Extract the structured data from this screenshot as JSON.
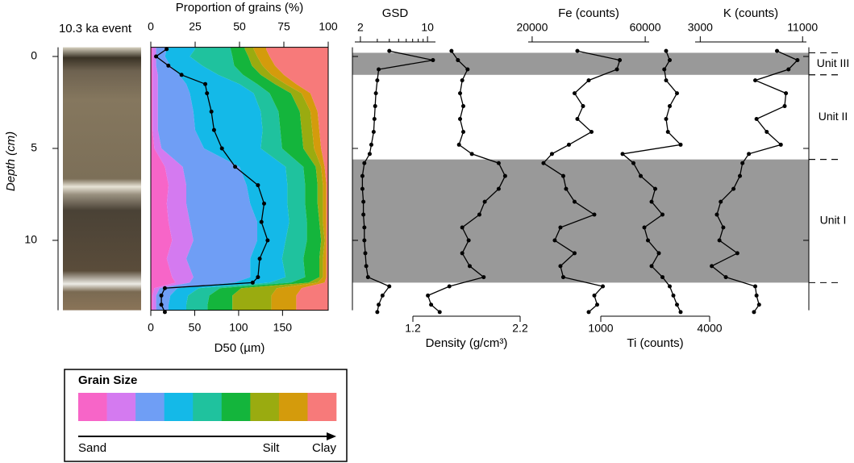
{
  "core_title": "10.3 ka event",
  "depth_axis": {
    "label": "Depth (cm)",
    "lim": [
      -0.5,
      13.8
    ],
    "ticks": [
      0,
      5,
      10
    ]
  },
  "units": [
    {
      "name": "Unit III",
      "top": -0.2,
      "bottom": 1.0,
      "shaded": true
    },
    {
      "name": "Unit II",
      "top": 1.0,
      "bottom": 5.6,
      "shaded": false
    },
    {
      "name": "Unit I",
      "top": 5.6,
      "bottom": 12.3,
      "shaded": true
    }
  ],
  "legend": {
    "title": "Grain Size",
    "labels": [
      "Sand",
      "Silt",
      "Clay"
    ]
  },
  "chart_data": [
    {
      "type": "stacked_area",
      "title": "Proportion of grains (%)",
      "xaxis": "top",
      "xlim": [
        0,
        100
      ],
      "xticks": [
        0,
        25,
        50,
        75,
        100
      ],
      "depth": [
        -0.4,
        0,
        0.5,
        1,
        1.5,
        2,
        3,
        4,
        5,
        6,
        7,
        8,
        9,
        10,
        11,
        12,
        12.3,
        12.6,
        13,
        13.5,
        13.9
      ],
      "series": [
        {
          "color": "#f765c8",
          "values": [
            1,
            1,
            1,
            1,
            1,
            1,
            1,
            1,
            2,
            8,
            10,
            9,
            10,
            12,
            9,
            12,
            14,
            2,
            1,
            1,
            1
          ]
        },
        {
          "color": "#d47af0",
          "values": [
            2,
            2,
            2,
            3,
            3,
            3,
            3,
            3,
            4,
            10,
            10,
            11,
            12,
            12,
            11,
            12,
            8,
            3,
            2,
            2,
            2
          ]
        },
        {
          "color": "#6f9ef5",
          "values": [
            6,
            5,
            8,
            12,
            16,
            18,
            20,
            21,
            24,
            32,
            34,
            36,
            38,
            36,
            36,
            32,
            25,
            10,
            8,
            7,
            7
          ]
        },
        {
          "color": "#14b9e8",
          "values": [
            16,
            14,
            18,
            22,
            30,
            36,
            38,
            38,
            32,
            26,
            23,
            21,
            18,
            16,
            18,
            20,
            20,
            12,
            10,
            10,
            10
          ]
        },
        {
          "color": "#1fc29e",
          "values": [
            20,
            24,
            18,
            14,
            10,
            9,
            10,
            10,
            12,
            10,
            10,
            10,
            10,
            12,
            12,
            11,
            12,
            12,
            12,
            12,
            12
          ]
        },
        {
          "color": "#14b53c",
          "values": [
            8,
            9,
            10,
            10,
            10,
            12,
            12,
            12,
            12,
            7,
            7,
            7,
            7,
            8,
            9,
            8,
            10,
            12,
            13,
            14,
            14
          ]
        },
        {
          "color": "#9aab10",
          "values": [
            5,
            5,
            6,
            6,
            6,
            6,
            6,
            6,
            6,
            3,
            3,
            3,
            2,
            2,
            2,
            2,
            5,
            20,
            22,
            22,
            22
          ]
        },
        {
          "color": "#d49b0c",
          "values": [
            7,
            7,
            7,
            7,
            6,
            5,
            4,
            4,
            4,
            2,
            2,
            2,
            2,
            1,
            2,
            2,
            4,
            14,
            14,
            14,
            14
          ]
        },
        {
          "color": "#f77a7a",
          "values": [
            35,
            33,
            30,
            25,
            18,
            10,
            6,
            5,
            4,
            2,
            1,
            1,
            1,
            1,
            1,
            1,
            2,
            15,
            18,
            18,
            18
          ]
        }
      ]
    },
    {
      "type": "line",
      "xlabel": "D50 (µm)",
      "xaxis": "bottom",
      "color": "#000000",
      "xlim": [
        0,
        202
      ],
      "xticks": [
        0,
        50,
        100,
        150
      ],
      "depth": [
        -0.4,
        0,
        0.5,
        1,
        1.5,
        2,
        3,
        4,
        5,
        6,
        7,
        8,
        9,
        10,
        11,
        12,
        12.3,
        12.6,
        13,
        13.5,
        13.9
      ],
      "values": [
        18,
        6,
        20,
        35,
        62,
        64,
        69,
        72,
        81,
        96,
        122,
        129,
        126,
        133,
        124,
        122,
        116,
        16,
        12,
        12,
        16
      ]
    },
    {
      "type": "line",
      "xlabel": "GSD",
      "xaxis": "top",
      "log": true,
      "color": "#000000",
      "xlim": [
        1.75,
        12.1
      ],
      "xticks": [
        2,
        10
      ],
      "xminor": [
        3,
        4,
        5,
        6,
        7,
        8,
        9
      ],
      "depth": [
        -0.3,
        0.2,
        0.7,
        1.3,
        2,
        2.7,
        3.4,
        4.1,
        4.8,
        5.3,
        5.8,
        6.5,
        7.2,
        7.9,
        8.6,
        9.3,
        10,
        10.7,
        11.4,
        12,
        12.5,
        13,
        13.5,
        13.9
      ],
      "values": [
        4.0,
        11.4,
        3.1,
        3.0,
        2.9,
        2.85,
        2.8,
        2.75,
        2.6,
        2.5,
        2.2,
        2.1,
        2.1,
        2.15,
        2.15,
        2.2,
        2.2,
        2.25,
        2.3,
        2.4,
        4.0,
        3.4,
        3.1,
        3.0
      ]
    },
    {
      "type": "line",
      "xlabel": "Density (g/cm³)",
      "xaxis": "bottom",
      "color": "#000000",
      "xlim": [
        1.2,
        2.2
      ],
      "xticks": [
        1.2,
        2.2
      ],
      "depth": [
        -0.3,
        0.2,
        0.7,
        1.3,
        2,
        2.7,
        3.4,
        4.1,
        4.8,
        5.3,
        5.8,
        6.5,
        7.2,
        7.9,
        8.6,
        9.3,
        10,
        10.7,
        11.4,
        12,
        12.5,
        13,
        13.5,
        13.9
      ],
      "values": [
        1.56,
        1.62,
        1.71,
        1.66,
        1.64,
        1.67,
        1.64,
        1.67,
        1.63,
        1.75,
        2.0,
        2.06,
        2.0,
        1.87,
        1.82,
        1.66,
        1.72,
        1.66,
        1.73,
        1.86,
        1.54,
        1.34,
        1.37,
        1.45
      ]
    },
    {
      "type": "line",
      "xlabel": "Fe (counts)",
      "xaxis": "top",
      "color": "#000000",
      "xlim": [
        18600,
        61400
      ],
      "xticks": [
        20000,
        60000
      ],
      "depth": [
        -0.3,
        0.2,
        0.7,
        1.3,
        2,
        2.7,
        3.4,
        4.1,
        4.8,
        5.3,
        5.8,
        6.5,
        7.2,
        7.9,
        8.6,
        9.3,
        10,
        10.7,
        11.4,
        12,
        12.5,
        13,
        13.5,
        13.9
      ],
      "values": [
        36000,
        51000,
        50000,
        40000,
        35000,
        38000,
        36000,
        41000,
        33000,
        27000,
        24000,
        31000,
        32000,
        35000,
        42000,
        30000,
        28000,
        35000,
        30000,
        31000,
        45000,
        42000,
        43000,
        40000
      ]
    },
    {
      "type": "line",
      "xlabel": "Ti (counts)",
      "xaxis": "bottom",
      "color": "#000000",
      "xlim": [
        1000,
        4000
      ],
      "xticks": [
        1000,
        4000
      ],
      "depth": [
        -0.3,
        0.2,
        0.7,
        1.3,
        2,
        2.7,
        3.4,
        4.1,
        4.8,
        5.3,
        5.8,
        6.5,
        7.2,
        7.9,
        8.6,
        9.3,
        10,
        10.7,
        11.4,
        12,
        12.5,
        13,
        13.5,
        13.9
      ],
      "values": [
        2800,
        2900,
        2750,
        2800,
        3100,
        2900,
        2800,
        2850,
        3200,
        1600,
        1900,
        2100,
        2500,
        2400,
        2700,
        2200,
        2300,
        2600,
        2400,
        2700,
        2900,
        3000,
        3100,
        3200
      ]
    },
    {
      "type": "line",
      "xlabel": "K (counts)",
      "xaxis": "top",
      "color": "#000000",
      "xlim": [
        2600,
        11300
      ],
      "xticks": [
        3000,
        11000
      ],
      "depth": [
        -0.3,
        0.2,
        0.7,
        1.3,
        2,
        2.7,
        3.4,
        4.1,
        4.8,
        5.3,
        5.8,
        6.5,
        7.2,
        7.9,
        8.6,
        9.3,
        10,
        10.7,
        11.4,
        12,
        12.5,
        13,
        13.5,
        13.9
      ],
      "values": [
        9000,
        10600,
        9900,
        7300,
        9700,
        9600,
        7400,
        8200,
        9300,
        6800,
        6300,
        6100,
        5600,
        4600,
        4300,
        4800,
        4500,
        5900,
        3900,
        5000,
        7300,
        7400,
        7600,
        7200
      ]
    }
  ]
}
